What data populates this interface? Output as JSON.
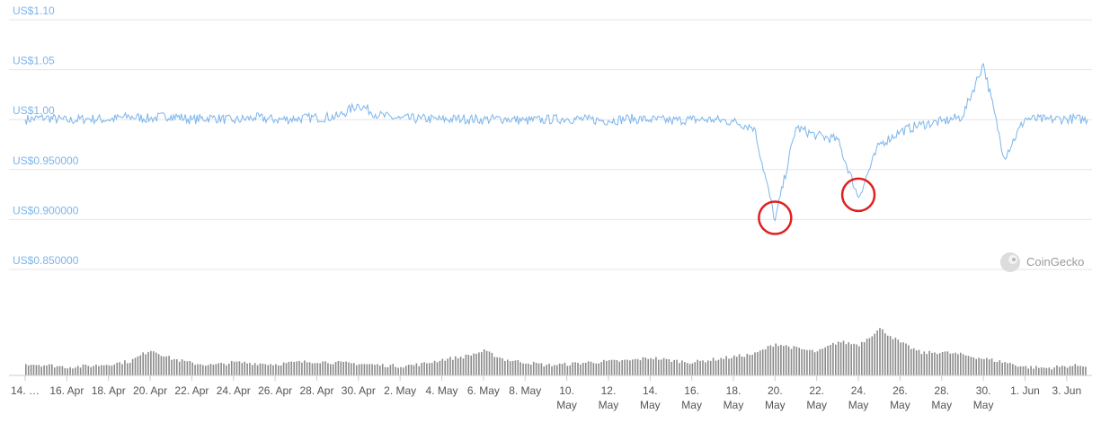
{
  "chart_data": {
    "type": "line",
    "title": "",
    "xlabel": "",
    "ylabel": "",
    "x_range": [
      "2023-04-14",
      "2023-06-04"
    ],
    "ylim": [
      0.85,
      1.1
    ],
    "y_ticks": [
      {
        "value": 1.1,
        "label": "US$1.10"
      },
      {
        "value": 1.05,
        "label": "US$1.05"
      },
      {
        "value": 1.0,
        "label": "US$1.00"
      },
      {
        "value": 0.95,
        "label": "US$0.950000"
      },
      {
        "value": 0.9,
        "label": "US$0.900000"
      },
      {
        "value": 0.85,
        "label": "US$0.850000"
      }
    ],
    "x_ticks": [
      {
        "date": "2023-04-14",
        "label": "14. …"
      },
      {
        "date": "2023-04-16",
        "label": "16. Apr"
      },
      {
        "date": "2023-04-18",
        "label": "18. Apr"
      },
      {
        "date": "2023-04-20",
        "label": "20. Apr"
      },
      {
        "date": "2023-04-22",
        "label": "22. Apr"
      },
      {
        "date": "2023-04-24",
        "label": "24. Apr"
      },
      {
        "date": "2023-04-26",
        "label": "26. Apr"
      },
      {
        "date": "2023-04-28",
        "label": "28. Apr"
      },
      {
        "date": "2023-04-30",
        "label": "30. Apr"
      },
      {
        "date": "2023-05-02",
        "label": "2. May"
      },
      {
        "date": "2023-05-04",
        "label": "4. May"
      },
      {
        "date": "2023-05-06",
        "label": "6. May"
      },
      {
        "date": "2023-05-08",
        "label": "8. May"
      },
      {
        "date": "2023-05-10",
        "label": "10.",
        "label2": "May"
      },
      {
        "date": "2023-05-12",
        "label": "12.",
        "label2": "May"
      },
      {
        "date": "2023-05-14",
        "label": "14.",
        "label2": "May"
      },
      {
        "date": "2023-05-16",
        "label": "16.",
        "label2": "May"
      },
      {
        "date": "2023-05-18",
        "label": "18.",
        "label2": "May"
      },
      {
        "date": "2023-05-20",
        "label": "20.",
        "label2": "May"
      },
      {
        "date": "2023-05-22",
        "label": "22.",
        "label2": "May"
      },
      {
        "date": "2023-05-24",
        "label": "24.",
        "label2": "May"
      },
      {
        "date": "2023-05-26",
        "label": "26.",
        "label2": "May"
      },
      {
        "date": "2023-05-28",
        "label": "28.",
        "label2": "May"
      },
      {
        "date": "2023-05-30",
        "label": "30.",
        "label2": "May"
      },
      {
        "date": "2023-06-01",
        "label": "1. Jun"
      },
      {
        "date": "2023-06-03",
        "label": "3. Jun"
      }
    ],
    "grid": true,
    "series": [
      {
        "kind": "price",
        "color": "#7cb5ec",
        "points": [
          [
            "2023-04-14",
            1.0
          ],
          [
            "2023-04-15",
            1.002
          ],
          [
            "2023-04-16",
            0.999
          ],
          [
            "2023-04-17",
            1.001
          ],
          [
            "2023-04-18",
            1.0
          ],
          [
            "2023-04-19",
            1.003
          ],
          [
            "2023-04-20",
            1.001
          ],
          [
            "2023-04-21",
            1.004
          ],
          [
            "2023-04-22",
            1.0
          ],
          [
            "2023-04-23",
            1.002
          ],
          [
            "2023-04-24",
            0.999
          ],
          [
            "2023-04-25",
            1.002
          ],
          [
            "2023-04-26",
            1.0
          ],
          [
            "2023-04-27",
            1.001
          ],
          [
            "2023-04-28",
            1.002
          ],
          [
            "2023-04-29",
            1.003
          ],
          [
            "2023-04-30",
            1.015
          ],
          [
            "2023-05-01",
            1.004
          ],
          [
            "2023-05-02",
            1.001
          ],
          [
            "2023-05-03",
            1.001
          ],
          [
            "2023-05-04",
            1.0
          ],
          [
            "2023-05-05",
            1.001
          ],
          [
            "2023-05-06",
            1.0
          ],
          [
            "2023-05-07",
            1.001
          ],
          [
            "2023-05-08",
            0.999
          ],
          [
            "2023-05-09",
            1.0
          ],
          [
            "2023-05-10",
            1.001
          ],
          [
            "2023-05-11",
            1.0
          ],
          [
            "2023-05-12",
            0.999
          ],
          [
            "2023-05-13",
            1.001
          ],
          [
            "2023-05-14",
            1.0
          ],
          [
            "2023-05-15",
            0.999
          ],
          [
            "2023-05-16",
            1.0
          ],
          [
            "2023-05-17",
            1.0
          ],
          [
            "2023-05-18",
            0.998
          ],
          [
            "2023-05-19",
            0.992
          ],
          [
            "2023-05-20",
            0.899
          ],
          [
            "2023-05-21",
            0.992
          ],
          [
            "2023-05-22",
            0.984
          ],
          [
            "2023-05-23",
            0.98
          ],
          [
            "2023-05-24",
            0.922
          ],
          [
            "2023-05-25",
            0.975
          ],
          [
            "2023-05-26",
            0.988
          ],
          [
            "2023-05-27",
            0.995
          ],
          [
            "2023-05-28",
            0.998
          ],
          [
            "2023-05-29",
            1.003
          ],
          [
            "2023-05-30",
            1.056
          ],
          [
            "2023-05-31",
            0.962
          ],
          [
            "2023-06-01",
            1.001
          ],
          [
            "2023-06-02",
            1.0
          ],
          [
            "2023-06-03",
            1.001
          ],
          [
            "2023-06-04",
            1.0
          ]
        ]
      },
      {
        "kind": "volume",
        "color": "#8a8a8a",
        "points": [
          [
            "2023-04-14",
            0.25
          ],
          [
            "2023-04-15",
            0.22
          ],
          [
            "2023-04-16",
            0.18
          ],
          [
            "2023-04-17",
            0.2
          ],
          [
            "2023-04-18",
            0.24
          ],
          [
            "2023-04-19",
            0.3
          ],
          [
            "2023-04-20",
            0.55
          ],
          [
            "2023-04-21",
            0.36
          ],
          [
            "2023-04-22",
            0.26
          ],
          [
            "2023-04-23",
            0.22
          ],
          [
            "2023-04-24",
            0.28
          ],
          [
            "2023-04-25",
            0.26
          ],
          [
            "2023-04-26",
            0.24
          ],
          [
            "2023-04-27",
            0.28
          ],
          [
            "2023-04-28",
            0.3
          ],
          [
            "2023-04-29",
            0.27
          ],
          [
            "2023-04-30",
            0.25
          ],
          [
            "2023-05-01",
            0.22
          ],
          [
            "2023-05-02",
            0.2
          ],
          [
            "2023-05-03",
            0.24
          ],
          [
            "2023-05-04",
            0.34
          ],
          [
            "2023-05-05",
            0.4
          ],
          [
            "2023-05-06",
            0.52
          ],
          [
            "2023-05-07",
            0.34
          ],
          [
            "2023-05-08",
            0.28
          ],
          [
            "2023-05-09",
            0.22
          ],
          [
            "2023-05-10",
            0.24
          ],
          [
            "2023-05-11",
            0.28
          ],
          [
            "2023-05-12",
            0.3
          ],
          [
            "2023-05-13",
            0.32
          ],
          [
            "2023-05-14",
            0.38
          ],
          [
            "2023-05-15",
            0.32
          ],
          [
            "2023-05-16",
            0.28
          ],
          [
            "2023-05-17",
            0.34
          ],
          [
            "2023-05-18",
            0.4
          ],
          [
            "2023-05-19",
            0.46
          ],
          [
            "2023-05-20",
            0.68
          ],
          [
            "2023-05-21",
            0.58
          ],
          [
            "2023-05-22",
            0.5
          ],
          [
            "2023-05-23",
            0.72
          ],
          [
            "2023-05-24",
            0.66
          ],
          [
            "2023-05-25",
            1.0
          ],
          [
            "2023-05-26",
            0.7
          ],
          [
            "2023-05-27",
            0.48
          ],
          [
            "2023-05-28",
            0.5
          ],
          [
            "2023-05-29",
            0.44
          ],
          [
            "2023-05-30",
            0.36
          ],
          [
            "2023-05-31",
            0.28
          ],
          [
            "2023-06-01",
            0.18
          ],
          [
            "2023-06-02",
            0.16
          ],
          [
            "2023-06-03",
            0.2
          ],
          [
            "2023-06-04",
            0.22
          ]
        ]
      }
    ],
    "annotations": [
      {
        "type": "circle",
        "date": "2023-05-20",
        "value": 0.899,
        "color": "#e02020"
      },
      {
        "type": "circle",
        "date": "2023-05-24",
        "value": 0.922,
        "color": "#e02020"
      }
    ],
    "watermark": {
      "text": "CoinGecko",
      "icon": "gecko-logo-icon",
      "placement": "bottom-right"
    }
  }
}
